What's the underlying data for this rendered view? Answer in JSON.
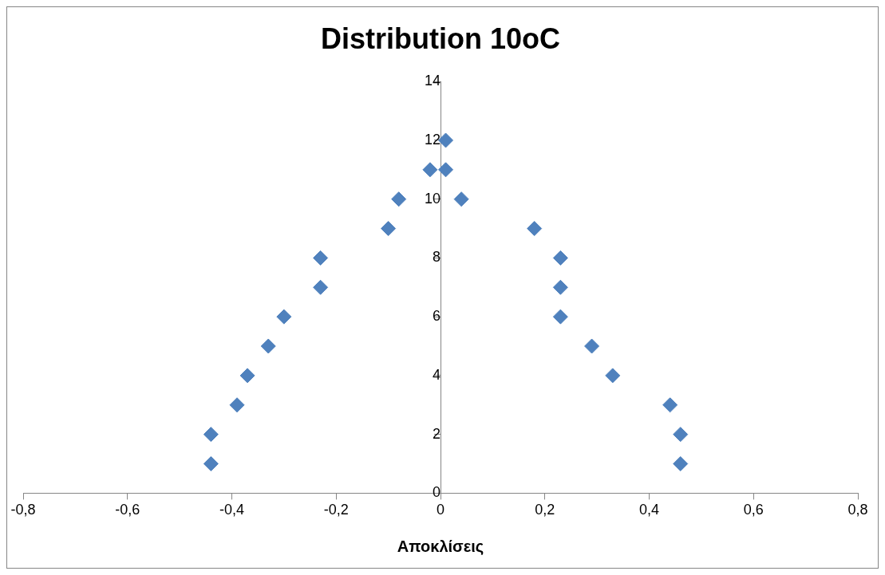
{
  "chart_data": {
    "type": "scatter",
    "title": "Distribution 10oC",
    "xlabel": "Αποκλίσεις",
    "series": [
      {
        "color": "#4f81bd",
        "x": [
          -0.44,
          -0.44,
          -0.39,
          -0.37,
          -0.33,
          -0.3,
          -0.23,
          -0.23,
          -0.1,
          -0.08,
          -0.02,
          0.01,
          0.01,
          0.04,
          0.18,
          0.23,
          0.23,
          0.23,
          0.29,
          0.33,
          0.44,
          0.46,
          0.46
        ],
        "values": [
          1,
          2,
          3,
          4,
          5,
          6,
          7,
          8,
          9,
          10,
          11,
          11,
          12,
          10,
          9,
          8,
          7,
          6,
          5,
          4,
          3,
          2,
          1
        ]
      }
    ],
    "xlim": [
      -0.8,
      0.8
    ],
    "xticks": [
      {
        "value": -0.8,
        "label": "-0,8"
      },
      {
        "value": -0.6,
        "label": "-0,6"
      },
      {
        "value": -0.4,
        "label": "-0,4"
      },
      {
        "value": -0.2,
        "label": "-0,2"
      },
      0,
      {
        "value": 0.2,
        "label": "0,2"
      },
      {
        "value": 0.4,
        "label": "0,4"
      },
      {
        "value": 0.6,
        "label": "0,6"
      },
      {
        "value": 0.8,
        "label": "0,8"
      }
    ],
    "ylim": [
      0,
      14
    ],
    "yticks": [
      0,
      2,
      4,
      6,
      8,
      10,
      12,
      14
    ],
    "marker": "diamond",
    "grid": false,
    "legend": false
  }
}
